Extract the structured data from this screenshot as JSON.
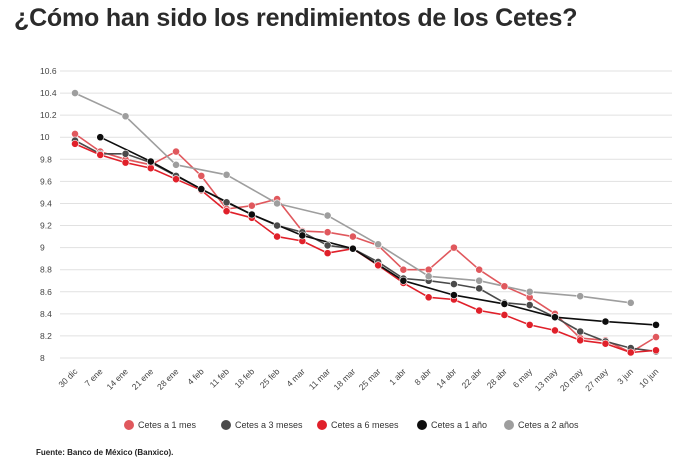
{
  "title": "¿Cómo han sido los rendimientos de los Cetes?",
  "source": "Fuente: Banco de México (Banxico).",
  "chart_data": {
    "type": "line",
    "categories": [
      "30 dic",
      "7 ene",
      "14 ene",
      "21 ene",
      "28 ene",
      "4 feb",
      "11 feb",
      "18 feb",
      "25 feb",
      "4 mar",
      "11 mar",
      "18 mar",
      "25 mar",
      "1 abr",
      "8 abr",
      "14 abr",
      "22 abr",
      "28 abr",
      "6 may",
      "13 may",
      "20 may",
      "27 may",
      "3 jun",
      "10 jun"
    ],
    "ylim": [
      8,
      10.6
    ],
    "yticks": [
      "10.6",
      "10.4",
      "10.2",
      "10",
      "9.8",
      "9.6",
      "9.4",
      "9.2",
      "9",
      "8.8",
      "8.6",
      "8.4",
      "8.2",
      "8"
    ],
    "grid": true,
    "legend_position": "bottom",
    "series": [
      {
        "name": "Cetes a 1 mes",
        "color": "#e0585d",
        "values": [
          10.03,
          9.87,
          9.8,
          9.75,
          9.87,
          9.65,
          9.35,
          9.38,
          9.44,
          9.15,
          9.14,
          9.1,
          9.02,
          8.8,
          8.8,
          9.0,
          8.8,
          8.65,
          8.55,
          8.4,
          8.18,
          8.16,
          8.05,
          8.19
        ]
      },
      {
        "name": "Cetes a 3 meses",
        "color": "#4a4a4a",
        "values": [
          9.97,
          9.85,
          9.85,
          9.77,
          9.65,
          9.53,
          9.41,
          9.3,
          9.2,
          9.14,
          9.02,
          8.99,
          8.87,
          8.72,
          8.7,
          8.67,
          8.63,
          8.5,
          8.48,
          8.37,
          8.24,
          8.15,
          8.09,
          8.06
        ]
      },
      {
        "name": "Cetes a 6 meses",
        "color": "#e0202a",
        "values": [
          9.94,
          9.84,
          9.77,
          9.72,
          9.62,
          9.52,
          9.33,
          9.27,
          9.1,
          9.06,
          8.95,
          8.99,
          8.84,
          8.68,
          8.55,
          8.53,
          8.43,
          8.39,
          8.3,
          8.25,
          8.16,
          8.13,
          8.05,
          8.07
        ]
      },
      {
        "name": "Cetes a 1 año",
        "color": "#0d0d0d",
        "values": [
          null,
          10.0,
          null,
          9.78,
          null,
          9.53,
          null,
          9.3,
          null,
          9.11,
          null,
          8.99,
          null,
          8.7,
          null,
          8.57,
          null,
          8.49,
          null,
          8.37,
          null,
          8.33,
          null,
          8.3
        ]
      },
      {
        "name": "Cetes a 2 años",
        "color": "#9e9e9e",
        "values": [
          10.4,
          null,
          10.19,
          null,
          9.75,
          null,
          9.66,
          null,
          9.4,
          null,
          9.29,
          null,
          9.03,
          null,
          8.74,
          null,
          8.7,
          null,
          8.6,
          null,
          8.56,
          null,
          8.5,
          null
        ]
      }
    ]
  }
}
